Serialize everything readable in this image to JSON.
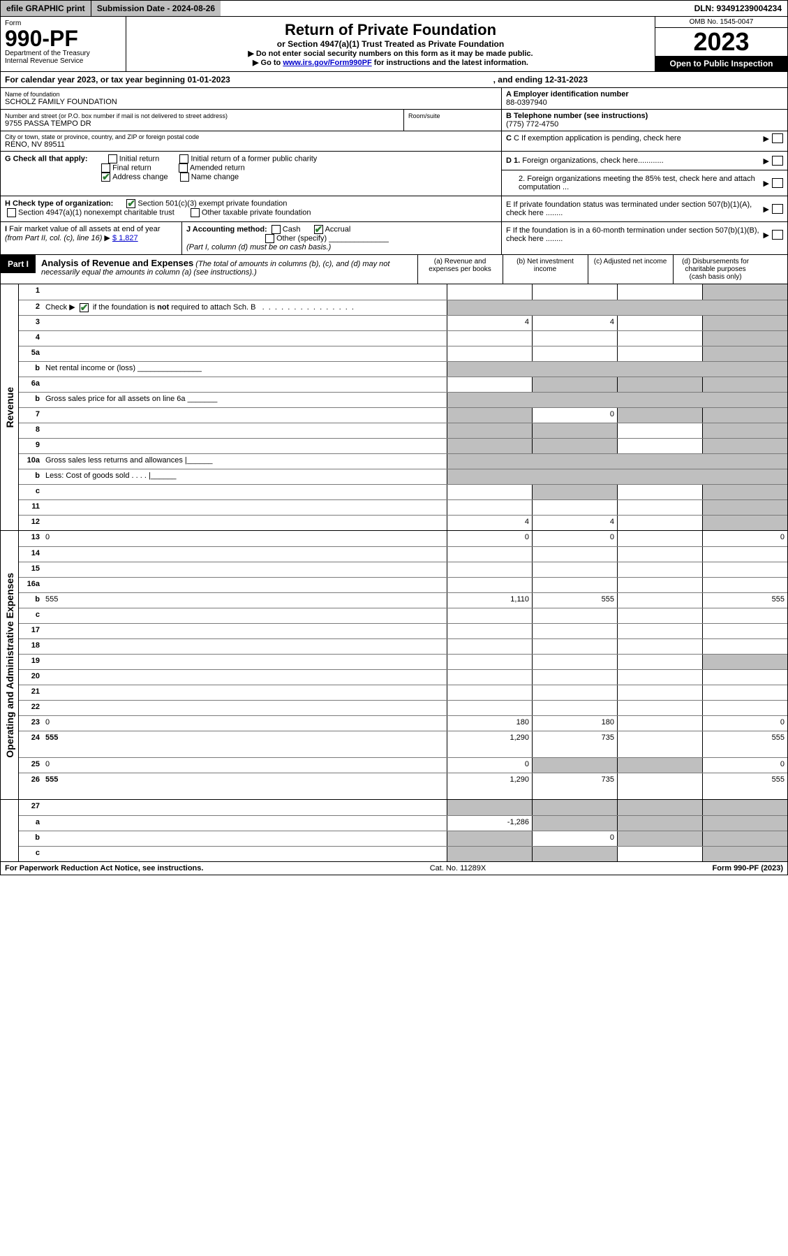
{
  "topbar": {
    "efile": "efile GRAPHIC print",
    "subdate_label": "Submission Date - 2024-08-26",
    "dln": "DLN: 93491239004234"
  },
  "header": {
    "form_label": "Form",
    "form_no": "990-PF",
    "dept": "Department of the Treasury",
    "irs": "Internal Revenue Service",
    "title": "Return of Private Foundation",
    "subtitle": "or Section 4947(a)(1) Trust Treated as Private Foundation",
    "note1": "▶ Do not enter social security numbers on this form as it may be made public.",
    "note2_pre": "▶ Go to ",
    "note2_link": "www.irs.gov/Form990PF",
    "note2_post": " for instructions and the latest information.",
    "omb": "OMB No. 1545-0047",
    "year": "2023",
    "open": "Open to Public Inspection"
  },
  "calrow": {
    "pre": "For calendar year 2023, or tax year beginning 01-01-2023",
    "end": ", and ending 12-31-2023"
  },
  "info": {
    "name_label": "Name of foundation",
    "name": "SCHOLZ FAMILY FOUNDATION",
    "addr_label": "Number and street (or P.O. box number if mail is not delivered to street address)",
    "addr": "9755 PASSA TEMPO DR",
    "room_label": "Room/suite",
    "city_label": "City or town, state or province, country, and ZIP or foreign postal code",
    "city": "RENO, NV  89511",
    "ein_label": "A Employer identification number",
    "ein": "88-0397940",
    "tel_label": "B Telephone number (see instructions)",
    "tel": "(775) 772-4750",
    "c_label": "C If exemption application is pending, check here",
    "g_label": "G Check all that apply:",
    "g_opts": [
      "Initial return",
      "Final return",
      "Address change",
      "Initial return of a former public charity",
      "Amended return",
      "Name change"
    ],
    "d1": "D 1. Foreign organizations, check here............",
    "d2": "2. Foreign organizations meeting the 85% test, check here and attach computation ...",
    "h_label": "H Check type of organization:",
    "h1": "Section 501(c)(3) exempt private foundation",
    "h2": "Section 4947(a)(1) nonexempt charitable trust",
    "h3": "Other taxable private foundation",
    "e_label": "E  If private foundation status was terminated under section 507(b)(1)(A), check here ........",
    "i_label": "I Fair market value of all assets at end of year (from Part II, col. (c), line 16)",
    "i_val": "$  1,827",
    "j_label": "J Accounting method:",
    "j_cash": "Cash",
    "j_accrual": "Accrual",
    "j_other": "Other (specify)",
    "j_note": "(Part I, column (d) must be on cash basis.)",
    "f_label": "F  If the foundation is in a 60-month termination under section 507(b)(1)(B), check here ........"
  },
  "part1": {
    "label": "Part I",
    "title": "Analysis of Revenue and Expenses",
    "desc": "(The total of amounts in columns (b), (c), and (d) may not necessarily equal the amounts in column (a) (see instructions).)",
    "col_a": "(a)   Revenue and expenses per books",
    "col_b": "(b)   Net investment income",
    "col_c": "(c)   Adjusted net income",
    "col_d": "(d)   Disbursements for charitable purposes (cash basis only)"
  },
  "sections": {
    "revenue": "Revenue",
    "opex": "Operating and Administrative Expenses"
  },
  "rows": [
    {
      "n": "1",
      "d": "",
      "a": "",
      "b": "",
      "c": "",
      "dg": true
    },
    {
      "n": "2",
      "d": "Check ▶ [✔] if the foundation is not required to attach Sch. B    .  .  .  .  .  .  .  .  .  .  .  .  .  .  .  .",
      "nocells": true
    },
    {
      "n": "3",
      "d": "",
      "a": "4",
      "b": "4",
      "c": "",
      "dg": true
    },
    {
      "n": "4",
      "d": "",
      "a": "",
      "b": "",
      "c": "",
      "dg": true
    },
    {
      "n": "5a",
      "d": "",
      "a": "",
      "b": "",
      "c": "",
      "dg": true
    },
    {
      "n": "b",
      "d": "Net rental income or (loss)  _______________",
      "nocells": true
    },
    {
      "n": "6a",
      "d": "",
      "a": "",
      "b": "",
      "c": "",
      "bg": true,
      "cg": true,
      "dg": true
    },
    {
      "n": "b",
      "d": "Gross sales price for all assets on line 6a _______",
      "nocells": true
    },
    {
      "n": "7",
      "d": "",
      "a": "",
      "b": "0",
      "c": "",
      "ag": true,
      "cg": true,
      "dg": true
    },
    {
      "n": "8",
      "d": "",
      "a": "",
      "b": "",
      "c": "",
      "ag": true,
      "bg": true,
      "dg": true
    },
    {
      "n": "9",
      "d": "",
      "a": "",
      "b": "",
      "c": "",
      "ag": true,
      "bg": true,
      "dg": true
    },
    {
      "n": "10a",
      "d": "Gross sales less returns and allowances  |______",
      "nocells": true
    },
    {
      "n": "b",
      "d": "Less: Cost of goods sold    .   .   .   .   |______",
      "nocells": true
    },
    {
      "n": "c",
      "d": "",
      "a": "",
      "b": "",
      "c": "",
      "bg": true,
      "dg": true
    },
    {
      "n": "11",
      "d": "",
      "a": "",
      "b": "",
      "c": "",
      "dg": true
    },
    {
      "n": "12",
      "d": "",
      "a": "4",
      "b": "4",
      "c": "",
      "bold": true,
      "dg": true
    }
  ],
  "oprows": [
    {
      "n": "13",
      "d": "0",
      "a": "0",
      "b": "0",
      "c": ""
    },
    {
      "n": "14",
      "d": "",
      "a": "",
      "b": "",
      "c": ""
    },
    {
      "n": "15",
      "d": "",
      "a": "",
      "b": "",
      "c": ""
    },
    {
      "n": "16a",
      "d": "",
      "a": "",
      "b": "",
      "c": ""
    },
    {
      "n": "b",
      "d": "555",
      "a": "1,110",
      "b": "555",
      "c": ""
    },
    {
      "n": "c",
      "d": "",
      "a": "",
      "b": "",
      "c": ""
    },
    {
      "n": "17",
      "d": "",
      "a": "",
      "b": "",
      "c": ""
    },
    {
      "n": "18",
      "d": "",
      "a": "",
      "b": "",
      "c": ""
    },
    {
      "n": "19",
      "d": "",
      "a": "",
      "b": "",
      "c": "",
      "dg": true
    },
    {
      "n": "20",
      "d": "",
      "a": "",
      "b": "",
      "c": ""
    },
    {
      "n": "21",
      "d": "",
      "a": "",
      "b": "",
      "c": ""
    },
    {
      "n": "22",
      "d": "",
      "a": "",
      "b": "",
      "c": ""
    },
    {
      "n": "23",
      "d": "0",
      "a": "180",
      "b": "180",
      "c": ""
    },
    {
      "n": "24",
      "d": "555",
      "a": "1,290",
      "b": "735",
      "c": "",
      "bold": true,
      "tall": true
    },
    {
      "n": "25",
      "d": "0",
      "a": "0",
      "b": "",
      "c": "",
      "bg": true,
      "cg": true
    },
    {
      "n": "26",
      "d": "555",
      "a": "1,290",
      "b": "735",
      "c": "",
      "bold": true,
      "tall": true
    }
  ],
  "endrows": [
    {
      "n": "27",
      "d": "",
      "a": "",
      "b": "",
      "c": "",
      "ag": true,
      "bg": true,
      "cg": true,
      "dg": true
    },
    {
      "n": "a",
      "d": "",
      "a": "-1,286",
      "b": "",
      "c": "",
      "bold": true,
      "bg": true,
      "cg": true,
      "dg": true
    },
    {
      "n": "b",
      "d": "",
      "a": "",
      "b": "0",
      "c": "",
      "bold": true,
      "ag": true,
      "cg": true,
      "dg": true
    },
    {
      "n": "c",
      "d": "",
      "a": "",
      "b": "",
      "c": "",
      "bold": true,
      "ag": true,
      "bg": true,
      "dg": true
    }
  ],
  "footer": {
    "left": "For Paperwork Reduction Act Notice, see instructions.",
    "mid": "Cat. No. 11289X",
    "right": "Form 990-PF (2023)"
  }
}
